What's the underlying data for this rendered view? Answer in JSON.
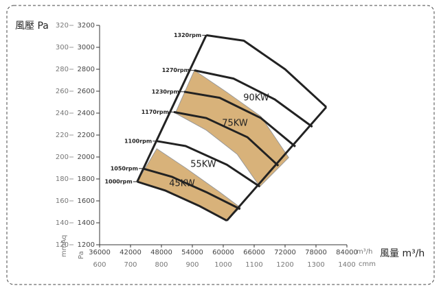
{
  "chart_data": {
    "type": "line",
    "y_label": "風壓 Pa",
    "x_label": "風量 m³/h",
    "y2_label": "mmAq",
    "y_unit": "Pa",
    "x_unit": "m³/h",
    "x2_unit": "cmm",
    "xlim": [
      36000,
      84000
    ],
    "xticks": [
      36000,
      42000,
      48000,
      54000,
      60000,
      66000,
      72000,
      78000,
      84000
    ],
    "ylim": [
      1200,
      3200
    ],
    "yticks": [
      1200,
      1400,
      1600,
      1800,
      2000,
      2200,
      2400,
      2600,
      2800,
      3000,
      3200
    ],
    "y2lim": [
      120,
      320
    ],
    "y2ticks": [
      120,
      140,
      160,
      180,
      200,
      220,
      240,
      260,
      280,
      300,
      320
    ],
    "x2lim": [
      600,
      1400
    ],
    "x2ticks": [
      600,
      700,
      800,
      900,
      1000,
      1100,
      1200,
      1300,
      1400
    ],
    "series": [
      {
        "name": "1000rpm",
        "color": "#222222",
        "x": [
          43300,
          48700,
          55300,
          60700
        ],
        "values": [
          1775,
          1695,
          1555,
          1420
        ]
      },
      {
        "name": "1050rpm",
        "color": "#222222",
        "x": [
          44400,
          50000,
          56700,
          63300
        ],
        "values": [
          1895,
          1820,
          1680,
          1525
        ]
      },
      {
        "name": "1100rpm",
        "color": "#222222",
        "x": [
          47100,
          52700,
          60700,
          67100
        ],
        "values": [
          2145,
          2100,
          1930,
          1730
        ]
      },
      {
        "name": "1170rpm",
        "color": "#222222",
        "x": [
          50400,
          56700,
          64700,
          70700
        ],
        "values": [
          2410,
          2355,
          2180,
          1920
        ]
      },
      {
        "name": "1230rpm",
        "color": "#222222",
        "x": [
          52400,
          59300,
          67300,
          74000
        ],
        "values": [
          2595,
          2540,
          2355,
          2095
        ]
      },
      {
        "name": "1270rpm",
        "color": "#222222",
        "x": [
          54400,
          62000,
          70000,
          77300
        ],
        "values": [
          2790,
          2715,
          2525,
          2275
        ]
      },
      {
        "name": "1320rpm",
        "color": "#222222",
        "x": [
          56700,
          64000,
          72000,
          80000
        ],
        "values": [
          3110,
          3060,
          2800,
          2455
        ]
      }
    ],
    "bands": [
      {
        "name": "45KW",
        "color": "#d8b27a",
        "x": [
          43300,
          48700,
          55300,
          60700,
          63300,
          59300,
          52700,
          47100
        ],
        "values": [
          1775,
          1695,
          1555,
          1420,
          1540,
          1680,
          1900,
          2075
        ]
      },
      {
        "name": "75KW",
        "color": "#d8b27a",
        "x": [
          50700,
          56700,
          62700,
          67100,
          72700,
          67300,
          60700,
          54400
        ],
        "values": [
          2400,
          2245,
          2025,
          1730,
          1995,
          2370,
          2590,
          2790
        ]
      }
    ],
    "annotations": [
      "90KW",
      "55KW"
    ]
  }
}
